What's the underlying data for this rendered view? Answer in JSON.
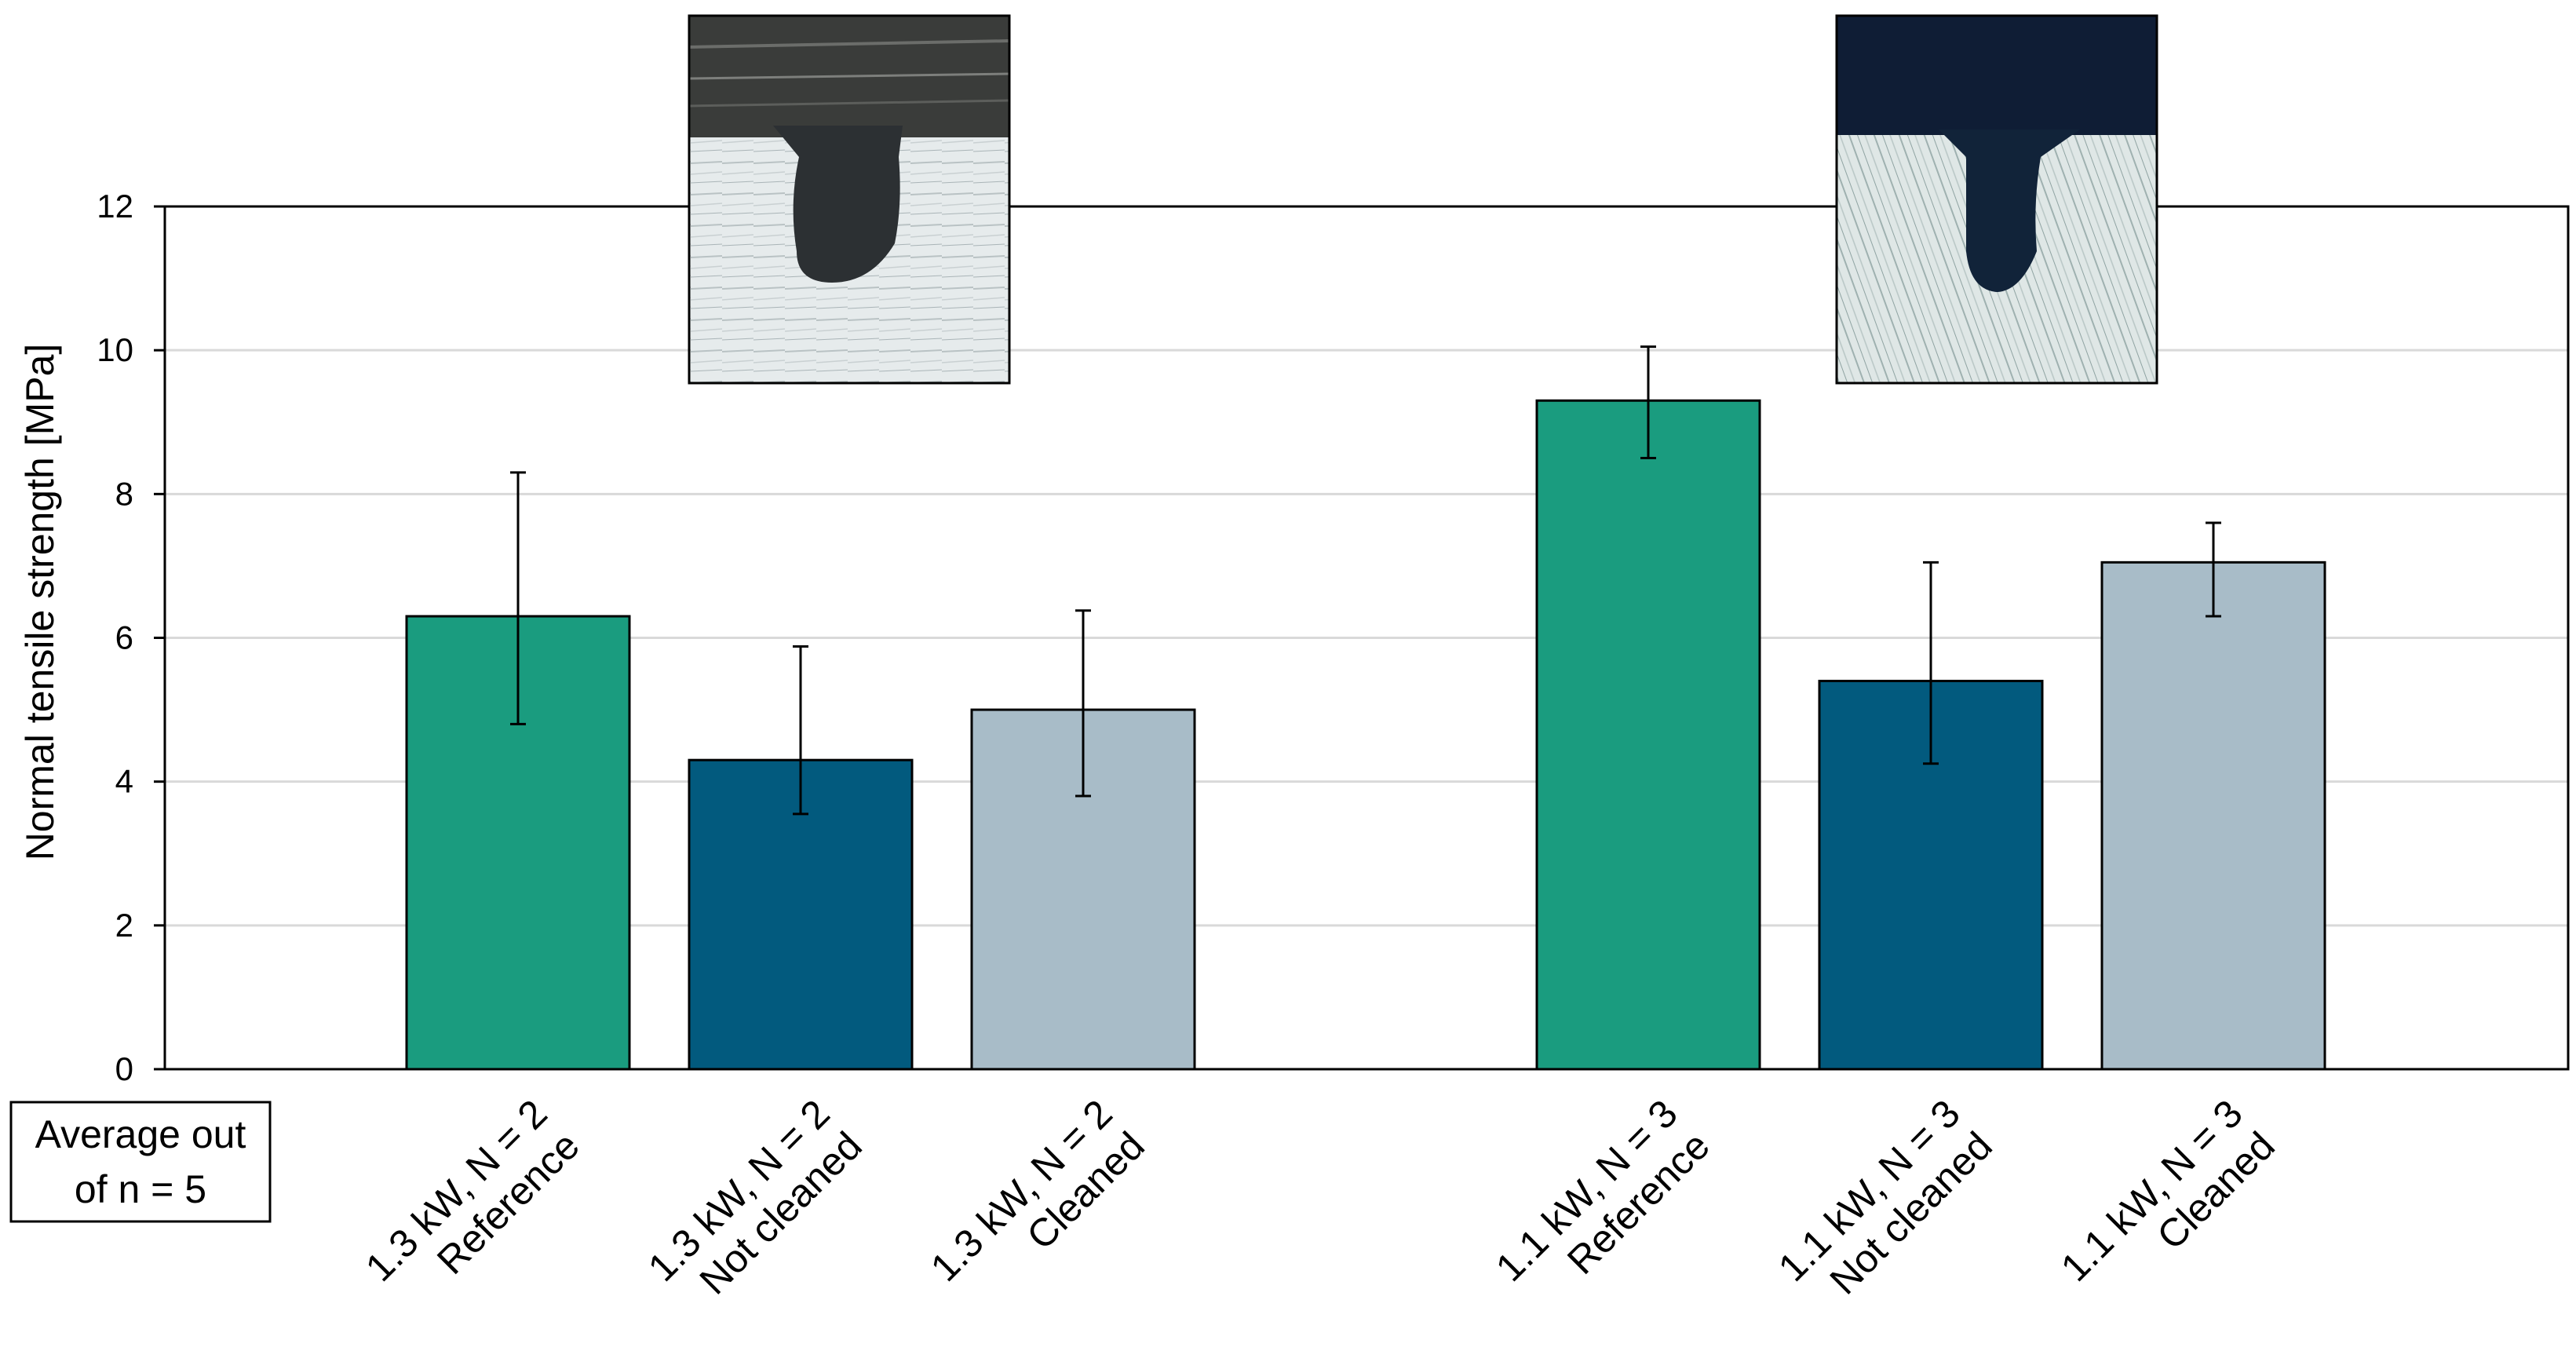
{
  "chart_data": {
    "type": "bar",
    "ylabel": "Normal tensile strength [MPa]",
    "ylim": [
      0,
      12
    ],
    "yticks": [
      0,
      2,
      4,
      6,
      8,
      10,
      12
    ],
    "grid": true,
    "categories": [
      [
        "1.3 kW, N = 2",
        "Reference"
      ],
      [
        "1.3 kW, N = 2",
        "Not cleaned"
      ],
      [
        "1.3 kW, N = 2",
        "Cleaned"
      ],
      [
        "1.1 kW, N = 3",
        "Reference"
      ],
      [
        "1.1 kW, N = 3",
        "Not cleaned"
      ],
      [
        "1.1 kW, N = 3",
        "Cleaned"
      ]
    ],
    "values": [
      6.3,
      4.3,
      5.0,
      9.3,
      5.4,
      7.05
    ],
    "error_low": [
      4.8,
      3.55,
      3.8,
      8.5,
      4.25,
      6.3
    ],
    "error_high": [
      8.3,
      5.88,
      6.38,
      10.05,
      7.05,
      7.6
    ],
    "colors": [
      "#1a9c7f",
      "#025a7e",
      "#a8bcc8",
      "#1a9c7f",
      "#025a7e",
      "#a8bcc8"
    ],
    "note": [
      "Average out",
      "of n = 5"
    ],
    "insets": [
      "micrograph-1.3kw",
      "micrograph-1.1kw"
    ]
  }
}
